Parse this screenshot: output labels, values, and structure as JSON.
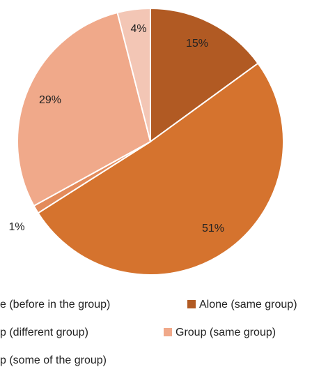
{
  "chart_data": {
    "type": "pie",
    "slices": [
      {
        "label": "Alone (same group)",
        "value": 15,
        "data_label": "15%",
        "color": "#B15A23"
      },
      {
        "label": "Alone (before in the group)",
        "value": 51,
        "data_label": "51%",
        "color": "#D5732E"
      },
      {
        "label": "Group (different group)",
        "value": 1,
        "data_label": "1%",
        "color": "#E38B5B"
      },
      {
        "label": "Group (same group)",
        "value": 29,
        "data_label": "29%",
        "color": "#F0A98A"
      },
      {
        "label": "Group (some of the group)",
        "value": 4,
        "data_label": "4%",
        "color": "#F3C6B5"
      }
    ],
    "legend": [
      {
        "text": "e (before in the group)",
        "color": ""
      },
      {
        "text": "Alone (same group)",
        "color": "#B15A23"
      },
      {
        "text": "p (different group)",
        "color": ""
      },
      {
        "text": "Group (same group)",
        "color": "#F0A98A"
      },
      {
        "text": "p (some of the group)",
        "color": ""
      }
    ],
    "legend_placement": "bottom"
  }
}
